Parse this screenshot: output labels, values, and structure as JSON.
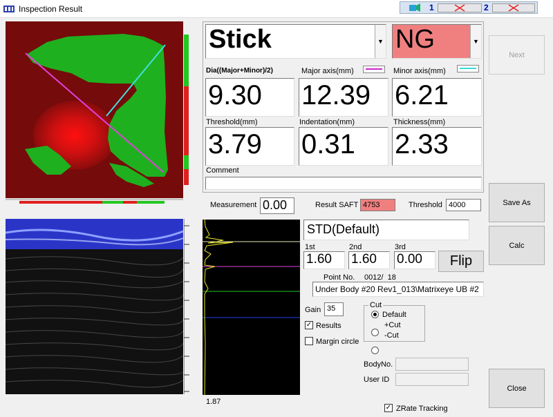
{
  "window": {
    "title": "Inspection Result"
  },
  "mini_toolbar": {
    "slot1": "1",
    "slot2": "2"
  },
  "result": {
    "type": "Stick",
    "judgment": "NG",
    "judgment_color": "#f08080",
    "dia_label": "Dia((Major+Minor)/2)",
    "dia_value": "9.30",
    "major_label": "Major axis(mm)",
    "major_value": "12.39",
    "major_color": "#cc22cc",
    "minor_label": "Minor axis(mm)",
    "minor_value": "6.21",
    "minor_color": "#33dddd",
    "threshold_label": "Threshold(mm)",
    "threshold_value": "3.79",
    "indentation_label": "Indentation(mm)",
    "indentation_value": "0.31",
    "thickness_label": "Thickness(mm)",
    "thickness_value": "2.33",
    "comment_label": "Comment",
    "comment_value": ""
  },
  "buttons": {
    "next": "Next",
    "save_as": "Save As",
    "calc": "Calc",
    "close": "Close",
    "flip": "Flip"
  },
  "measure": {
    "measurement_label": "Measurement",
    "measurement_value": "0.00",
    "saft_label": "Result SAFT",
    "saft_value": "4753",
    "saft_color": "#f08080",
    "threshold_label": "Threshold",
    "threshold_value": "4000"
  },
  "settings": {
    "std": "STD(Default)",
    "first_label": "1st",
    "first_value": "1.60",
    "second_label": "2nd",
    "second_value": "1.60",
    "third_label": "3rd",
    "third_value": "0.00",
    "point_label": "Point No.",
    "point_value": "0012/  18",
    "path": "Under Body #20 Rev1_013\\Matrixeye UB #2",
    "gain_label": "Gain",
    "gain_value": "35",
    "results_label": "Results",
    "margin_label": "Margin circle",
    "cut_label": "Cut",
    "cut_default": "Default",
    "cut_plus": "+Cut",
    "cut_minus": "-Cut",
    "bodyno_label": "BodyNo.",
    "userid_label": "User ID",
    "zrate_label": "ZRate Tracking"
  },
  "signal": {
    "bottom_value": "1.87"
  }
}
